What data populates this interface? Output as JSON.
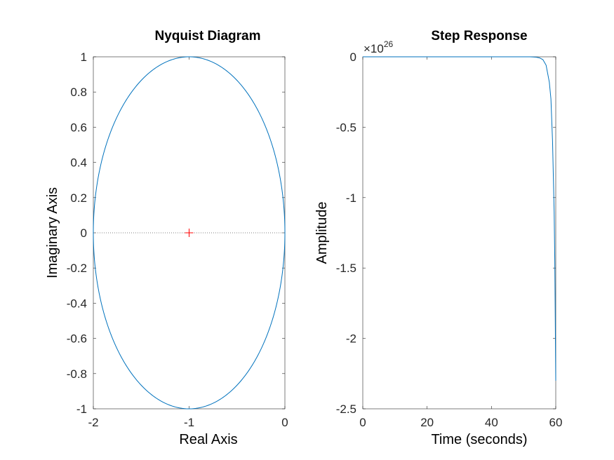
{
  "chart_data": [
    {
      "type": "line",
      "title": "Nyquist Diagram",
      "xlabel": "Real Axis",
      "ylabel": "Imaginary Axis",
      "xlim": [
        -2,
        0
      ],
      "ylim": [
        -1,
        1
      ],
      "x_ticks": [
        -2,
        -1,
        0
      ],
      "x_tick_labels": [
        "-2",
        "-1",
        "0"
      ],
      "y_ticks": [
        -1,
        -0.8,
        -0.6,
        -0.4,
        -0.2,
        0,
        0.2,
        0.4,
        0.6,
        0.8,
        1
      ],
      "y_tick_labels": [
        "-1",
        "-0.8",
        "-0.6",
        "-0.4",
        "-0.2",
        "0",
        "0.2",
        "0.4",
        "0.6",
        "0.8",
        "1"
      ],
      "grid": false,
      "series": [
        {
          "curve": "circle",
          "center": [
            -1,
            0
          ],
          "radius": 1,
          "color": "#0072BD"
        }
      ],
      "critical_point": {
        "x": -1,
        "y": 0,
        "marker": "+",
        "color": "#FF0000"
      },
      "zero_line": {
        "y": 0,
        "style": "dotted",
        "color": "#808080"
      }
    },
    {
      "type": "line",
      "title": "Step Response",
      "xlabel": "Time (seconds)",
      "ylabel": "Amplitude",
      "xlim": [
        0,
        60
      ],
      "ylim": [
        -2.5,
        0
      ],
      "y_exponent_base": "×10",
      "y_exponent": "26",
      "x_ticks": [
        0,
        20,
        40,
        60
      ],
      "x_tick_labels": [
        "0",
        "20",
        "40",
        "60"
      ],
      "y_ticks": [
        -2.5,
        -2,
        -1.5,
        -1,
        -0.5,
        0
      ],
      "y_tick_labels": [
        "-2.5",
        "-2",
        "-1.5",
        "-1",
        "-0.5",
        "0"
      ],
      "grid": false,
      "series": [
        {
          "color": "#0072BD",
          "x": [
            0,
            10,
            20,
            30,
            40,
            50,
            52,
            53,
            54,
            55,
            56,
            57,
            58,
            58.5,
            59,
            59.5,
            59.7,
            60
          ],
          "y": [
            0,
            0,
            0,
            0,
            0,
            0,
            0,
            -0.001,
            -0.003,
            -0.008,
            -0.02,
            -0.06,
            -0.18,
            -0.3,
            -0.6,
            -1.1,
            -1.45,
            -2.3
          ]
        }
      ]
    }
  ]
}
